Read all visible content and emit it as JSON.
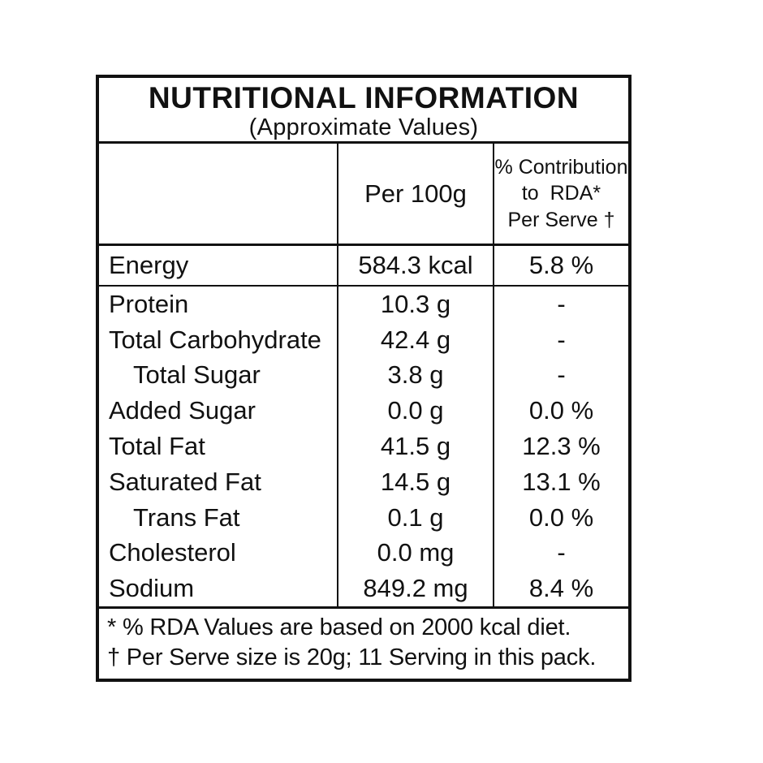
{
  "title": "NUTRITIONAL INFORMATION",
  "subtitle": "(Approximate Values)",
  "columns": {
    "nutrient_header": "",
    "per_100g_header": "Per 100g",
    "rda_header_line1": "% Contribution",
    "rda_header_line2": "to  RDA*",
    "rda_header_line3": "Per Serve †"
  },
  "energy_row": {
    "label": "Energy",
    "per_100g": "584.3 kcal",
    "rda": "5.8 %"
  },
  "rows": [
    {
      "label": "Protein",
      "per_100g": "10.3 g",
      "rda": "-"
    },
    {
      "label": "Total Carbohydrate",
      "per_100g": "42.4 g",
      "rda": "-"
    },
    {
      "label": "Total Sugar",
      "per_100g": "3.8 g",
      "rda": "-"
    },
    {
      "label": "Added Sugar",
      "per_100g": "0.0 g",
      "rda": "0.0 %"
    },
    {
      "label": "Total Fat",
      "per_100g": "41.5 g",
      "rda": "12.3 %"
    },
    {
      "label": "Saturated Fat",
      "per_100g": "14.5 g",
      "rda": "13.1 %"
    },
    {
      "label": "Trans Fat",
      "per_100g": "0.1 g",
      "rda": "0.0 %"
    },
    {
      "label": "Cholesterol",
      "per_100g": "0.0 mg",
      "rda": "-"
    },
    {
      "label": "Sodium",
      "per_100g": "849.2 mg",
      "rda": "8.4 %"
    }
  ],
  "footnotes": [
    "* % RDA Values are based on 2000 kcal diet.",
    "† Per Serve size is 20g; 11 Serving in this pack."
  ],
  "colors": {
    "text": "#111111",
    "border": "#111111",
    "background": "#ffffff"
  }
}
